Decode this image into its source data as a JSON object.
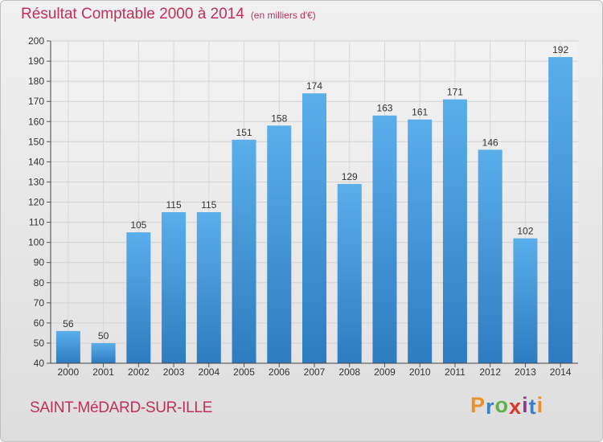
{
  "header": {
    "title": "Résultat Comptable 2000 à 2014",
    "subtitle": "(en milliers d'€)"
  },
  "footer": {
    "city": "SAINT-MéDARD-SUR-ILLE",
    "logo_letters": [
      "P",
      "r",
      "o",
      "x",
      "i",
      "t",
      "i"
    ],
    "logo_colors": [
      "#e8912a",
      "#3a82c4",
      "#5fb245",
      "#e0342a",
      "#8e3d8c",
      "#3a82c4",
      "#e8912a"
    ]
  },
  "colors": {
    "bar": "#4a9fe0",
    "title": "#c0305a"
  },
  "chart_data": {
    "type": "bar",
    "title": "Résultat Comptable 2000 à 2014",
    "subtitle": "(en milliers d'€)",
    "categories": [
      "2000",
      "2001",
      "2002",
      "2003",
      "2004",
      "2005",
      "2006",
      "2007",
      "2008",
      "2009",
      "2010",
      "2011",
      "2012",
      "2013",
      "2014"
    ],
    "values": [
      56,
      50,
      105,
      115,
      115,
      151,
      158,
      174,
      129,
      163,
      161,
      171,
      146,
      102,
      192
    ],
    "value_labels": [
      "56",
      "50",
      "105",
      "115",
      "115",
      "151",
      "158",
      "174",
      "129",
      "163",
      "161",
      "171",
      "146",
      "102",
      "192"
    ],
    "ylim": [
      40,
      200
    ],
    "yticks": [
      40,
      50,
      60,
      70,
      80,
      90,
      100,
      110,
      120,
      130,
      140,
      150,
      160,
      170,
      180,
      190,
      200
    ],
    "ytick_labels": [
      "40",
      "50",
      "60",
      "70",
      "80",
      "90",
      "100",
      "110",
      "120",
      "130",
      "140",
      "150",
      "160",
      "170",
      "180",
      "190",
      "200"
    ],
    "grid": true,
    "xlabel": "",
    "ylabel": ""
  }
}
